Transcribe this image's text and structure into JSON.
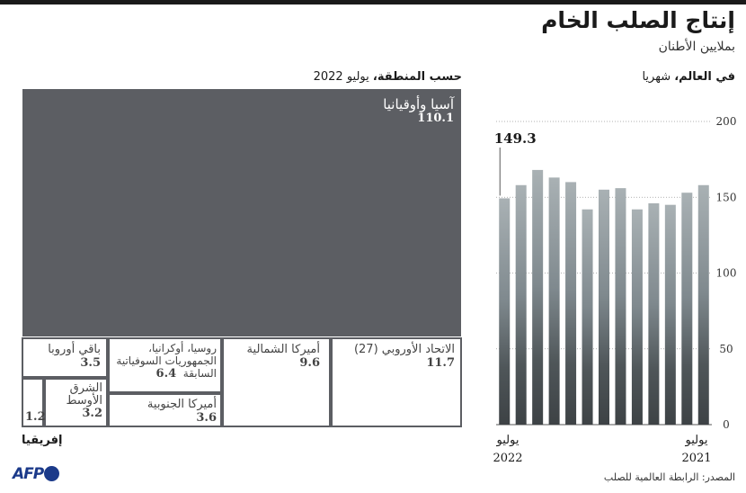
{
  "header": {
    "title": "إنتاج الصلب الخام",
    "subtitle": "بملايين الأطنان"
  },
  "monthly_label": {
    "bold": "في العالم،",
    "rest": " شهريا"
  },
  "region_label": {
    "bold": "حسب المنطقة،",
    "rest": " يوليو 2022"
  },
  "chart_data": [
    {
      "type": "bar",
      "title": "",
      "x_start_label": "يوليو 2021",
      "x_end_label": "يوليو 2022",
      "x_start": {
        "month": "يوليو",
        "year": "2021"
      },
      "x_end": {
        "month": "يوليو",
        "year": "2022"
      },
      "categories": [
        "2021-07",
        "2021-08",
        "2021-09",
        "2021-10",
        "2021-11",
        "2021-12",
        "2022-01",
        "2022-02",
        "2022-03",
        "2022-04",
        "2022-05",
        "2022-06",
        "2022-07"
      ],
      "values": [
        158,
        153,
        145,
        146,
        142,
        156,
        155,
        142,
        160,
        163,
        168,
        158,
        149.3
      ],
      "annotation": {
        "label": "149.3",
        "category": "2022-07"
      },
      "ylim": [
        0,
        200
      ],
      "yticks": [
        0,
        50,
        100,
        150,
        200
      ],
      "grid": true
    },
    {
      "type": "treemap",
      "title": "حسب المنطقة، يوليو 2022",
      "items": [
        {
          "name": "آسيا وأوقيانيا",
          "value": 110.1,
          "value_label": "110.1"
        },
        {
          "name": "الاتحاد الأوروبي (27)",
          "value": 11.7,
          "value_label": "11.7"
        },
        {
          "name": "أميركا الشمالية",
          "value": 9.6,
          "value_label": "9.6"
        },
        {
          "name": "روسيا، أوكرانيا، الجمهوريات السوفياتية السابقة",
          "lines": [
            "روسيا، أوكرانيا،",
            "الجمهوريات السوفياتية",
            "السابقة"
          ],
          "value": 6.4,
          "value_label": "6.4"
        },
        {
          "name": "أميركا الجنوبية",
          "value": 3.6,
          "value_label": "3.6"
        },
        {
          "name": "باقي أوروبا",
          "value": 3.5,
          "value_label": "3.5"
        },
        {
          "name": "الشرق الأوسط",
          "lines": [
            "الشرق",
            "الأوسط"
          ],
          "value": 3.2,
          "value_label": "3.2"
        },
        {
          "name": "إفريقيا",
          "value": 1.2,
          "value_label": "1.2"
        }
      ]
    }
  ],
  "footer": {
    "source": "المصدر: الرابطة العالمية للصلب",
    "logo": "AFP"
  }
}
